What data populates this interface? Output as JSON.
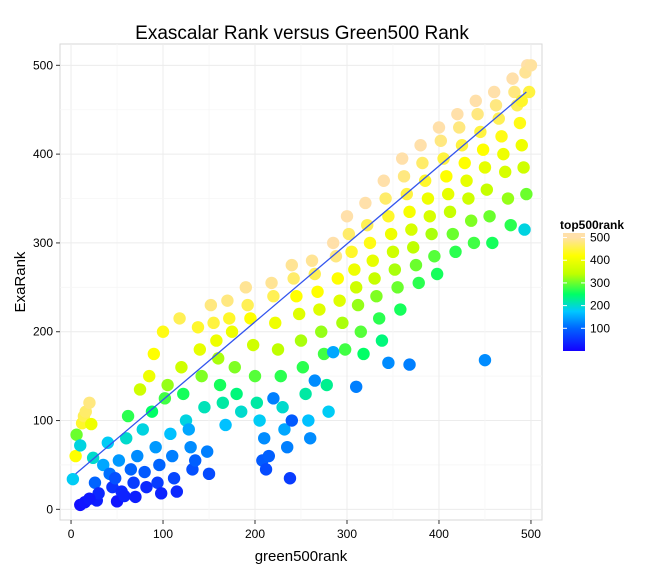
{
  "chart_data": {
    "type": "scatter",
    "title": "Exascalar Rank versus Green500 Rank",
    "xlabel": "green500rank",
    "ylabel": "ExaRank",
    "xlim": [
      -12,
      512
    ],
    "ylim": [
      -12,
      524
    ],
    "xticks": [
      0,
      100,
      200,
      300,
      400,
      500
    ],
    "yticks": [
      0,
      100,
      200,
      300,
      400,
      500
    ],
    "grid": true,
    "background": "#ffffff",
    "point_size_note": "large filled circles",
    "trend_line": {
      "x": [
        5,
        495
      ],
      "y": [
        40,
        470
      ],
      "color": "#3355ee"
    },
    "color_variable": "top500rank",
    "legend": {
      "title": "top500rank",
      "position": "right",
      "ticks": [
        100,
        200,
        300,
        400,
        500
      ],
      "gradient": [
        {
          "value": 0,
          "color": "#1400ff"
        },
        {
          "value": 100,
          "color": "#0064ff"
        },
        {
          "value": 175,
          "color": "#00c8ff"
        },
        {
          "value": 250,
          "color": "#00ff66"
        },
        {
          "value": 340,
          "color": "#bfff00"
        },
        {
          "value": 420,
          "color": "#ffff00"
        },
        {
          "value": 500,
          "color": "#ffe0aa"
        }
      ]
    },
    "points": [
      [
        2,
        34,
        180
      ],
      [
        5,
        60,
        420
      ],
      [
        6,
        84,
        300
      ],
      [
        10,
        72,
        190
      ],
      [
        12,
        97,
        440
      ],
      [
        14,
        105,
        460
      ],
      [
        16,
        110,
        470
      ],
      [
        20,
        120,
        480
      ],
      [
        22,
        96,
        400
      ],
      [
        24,
        58,
        200
      ],
      [
        26,
        30,
        100
      ],
      [
        28,
        10,
        30
      ],
      [
        30,
        18,
        40
      ],
      [
        10,
        5,
        15
      ],
      [
        15,
        8,
        20
      ],
      [
        20,
        12,
        25
      ],
      [
        35,
        50,
        150
      ],
      [
        40,
        75,
        180
      ],
      [
        42,
        40,
        110
      ],
      [
        45,
        25,
        50
      ],
      [
        48,
        35,
        80
      ],
      [
        50,
        9,
        20
      ],
      [
        52,
        55,
        140
      ],
      [
        55,
        20,
        40
      ],
      [
        58,
        15,
        35
      ],
      [
        60,
        80,
        200
      ],
      [
        62,
        105,
        270
      ],
      [
        65,
        45,
        100
      ],
      [
        68,
        30,
        60
      ],
      [
        70,
        14,
        30
      ],
      [
        72,
        60,
        130
      ],
      [
        75,
        135,
        360
      ],
      [
        78,
        90,
        190
      ],
      [
        80,
        42,
        90
      ],
      [
        82,
        25,
        40
      ],
      [
        85,
        150,
        400
      ],
      [
        88,
        110,
        250
      ],
      [
        90,
        175,
        420
      ],
      [
        92,
        70,
        140
      ],
      [
        94,
        30,
        60
      ],
      [
        96,
        50,
        100
      ],
      [
        98,
        18,
        35
      ],
      [
        100,
        200,
        430
      ],
      [
        102,
        125,
        280
      ],
      [
        105,
        140,
        320
      ],
      [
        108,
        85,
        170
      ],
      [
        110,
        60,
        120
      ],
      [
        112,
        35,
        70
      ],
      [
        115,
        20,
        40
      ],
      [
        118,
        215,
        460
      ],
      [
        120,
        160,
        360
      ],
      [
        122,
        130,
        260
      ],
      [
        125,
        100,
        190
      ],
      [
        128,
        90,
        150
      ],
      [
        130,
        70,
        130
      ],
      [
        132,
        45,
        80
      ],
      [
        135,
        55,
        95
      ],
      [
        138,
        205,
        440
      ],
      [
        140,
        180,
        390
      ],
      [
        142,
        150,
        310
      ],
      [
        145,
        115,
        210
      ],
      [
        148,
        65,
        120
      ],
      [
        150,
        40,
        75
      ],
      [
        152,
        230,
        480
      ],
      [
        155,
        210,
        450
      ],
      [
        158,
        190,
        400
      ],
      [
        160,
        170,
        330
      ],
      [
        162,
        140,
        260
      ],
      [
        165,
        120,
        220
      ],
      [
        168,
        95,
        170
      ],
      [
        170,
        235,
        480
      ],
      [
        172,
        215,
        440
      ],
      [
        175,
        200,
        400
      ],
      [
        178,
        160,
        310
      ],
      [
        180,
        130,
        240
      ],
      [
        185,
        110,
        200
      ],
      [
        190,
        250,
        490
      ],
      [
        192,
        230,
        460
      ],
      [
        195,
        215,
        420
      ],
      [
        198,
        185,
        360
      ],
      [
        200,
        150,
        290
      ],
      [
        202,
        120,
        220
      ],
      [
        205,
        100,
        180
      ],
      [
        208,
        55,
        90
      ],
      [
        210,
        80,
        130
      ],
      [
        212,
        45,
        75
      ],
      [
        215,
        60,
        95
      ],
      [
        218,
        255,
        490
      ],
      [
        220,
        240,
        460
      ],
      [
        222,
        210,
        400
      ],
      [
        225,
        180,
        340
      ],
      [
        228,
        150,
        270
      ],
      [
        230,
        115,
        200
      ],
      [
        232,
        90,
        150
      ],
      [
        235,
        70,
        120
      ],
      [
        238,
        35,
        60
      ],
      [
        240,
        275,
        490
      ],
      [
        242,
        260,
        470
      ],
      [
        245,
        240,
        420
      ],
      [
        248,
        220,
        380
      ],
      [
        250,
        190,
        330
      ],
      [
        252,
        160,
        270
      ],
      [
        255,
        130,
        220
      ],
      [
        258,
        100,
        170
      ],
      [
        260,
        80,
        130
      ],
      [
        262,
        280,
        490
      ],
      [
        265,
        265,
        460
      ],
      [
        268,
        245,
        420
      ],
      [
        270,
        225,
        380
      ],
      [
        272,
        200,
        320
      ],
      [
        275,
        175,
        280
      ],
      [
        278,
        140,
        230
      ],
      [
        280,
        110,
        180
      ],
      [
        285,
        300,
        500
      ],
      [
        288,
        285,
        480
      ],
      [
        290,
        260,
        420
      ],
      [
        292,
        235,
        380
      ],
      [
        295,
        210,
        330
      ],
      [
        298,
        180,
        280
      ],
      [
        300,
        330,
        500
      ],
      [
        302,
        310,
        470
      ],
      [
        305,
        290,
        440
      ],
      [
        308,
        270,
        400
      ],
      [
        310,
        250,
        360
      ],
      [
        312,
        230,
        320
      ],
      [
        315,
        200,
        290
      ],
      [
        318,
        175,
        250
      ],
      [
        320,
        345,
        500
      ],
      [
        322,
        320,
        460
      ],
      [
        325,
        300,
        430
      ],
      [
        328,
        280,
        390
      ],
      [
        330,
        260,
        350
      ],
      [
        332,
        240,
        310
      ],
      [
        335,
        215,
        270
      ],
      [
        338,
        190,
        240
      ],
      [
        340,
        370,
        500
      ],
      [
        342,
        350,
        470
      ],
      [
        345,
        330,
        440
      ],
      [
        348,
        310,
        400
      ],
      [
        350,
        290,
        360
      ],
      [
        352,
        270,
        330
      ],
      [
        355,
        250,
        300
      ],
      [
        358,
        225,
        260
      ],
      [
        360,
        395,
        500
      ],
      [
        362,
        375,
        480
      ],
      [
        365,
        355,
        450
      ],
      [
        368,
        335,
        410
      ],
      [
        370,
        315,
        370
      ],
      [
        372,
        295,
        340
      ],
      [
        375,
        275,
        300
      ],
      [
        378,
        255,
        270
      ],
      [
        380,
        410,
        500
      ],
      [
        382,
        390,
        470
      ],
      [
        385,
        370,
        440
      ],
      [
        388,
        350,
        400
      ],
      [
        390,
        330,
        370
      ],
      [
        392,
        310,
        330
      ],
      [
        395,
        285,
        290
      ],
      [
        398,
        265,
        260
      ],
      [
        400,
        430,
        500
      ],
      [
        402,
        415,
        480
      ],
      [
        405,
        395,
        450
      ],
      [
        408,
        375,
        420
      ],
      [
        410,
        355,
        390
      ],
      [
        412,
        335,
        350
      ],
      [
        415,
        310,
        300
      ],
      [
        418,
        290,
        270
      ],
      [
        420,
        445,
        500
      ],
      [
        422,
        430,
        480
      ],
      [
        425,
        410,
        450
      ],
      [
        428,
        390,
        420
      ],
      [
        430,
        370,
        390
      ],
      [
        432,
        350,
        360
      ],
      [
        435,
        325,
        310
      ],
      [
        438,
        300,
        280
      ],
      [
        440,
        460,
        500
      ],
      [
        442,
        445,
        480
      ],
      [
        445,
        425,
        450
      ],
      [
        448,
        405,
        420
      ],
      [
        450,
        385,
        390
      ],
      [
        452,
        360,
        350
      ],
      [
        455,
        330,
        300
      ],
      [
        458,
        300,
        260
      ],
      [
        460,
        470,
        500
      ],
      [
        462,
        455,
        480
      ],
      [
        465,
        440,
        460
      ],
      [
        468,
        420,
        430
      ],
      [
        470,
        400,
        400
      ],
      [
        472,
        380,
        370
      ],
      [
        475,
        350,
        320
      ],
      [
        478,
        320,
        270
      ],
      [
        480,
        485,
        500
      ],
      [
        482,
        470,
        480
      ],
      [
        485,
        455,
        460
      ],
      [
        488,
        435,
        430
      ],
      [
        490,
        410,
        400
      ],
      [
        492,
        385,
        360
      ],
      [
        495,
        355,
        300
      ],
      [
        496,
        500,
        500
      ],
      [
        494,
        492,
        490
      ],
      [
        498,
        470,
        450
      ],
      [
        490,
        460,
        440
      ],
      [
        493,
        315,
        190
      ],
      [
        500,
        500,
        495
      ],
      [
        345,
        165,
        130
      ],
      [
        368,
        163,
        120
      ],
      [
        450,
        168,
        130
      ],
      [
        285,
        177,
        150
      ],
      [
        310,
        138,
        120
      ],
      [
        265,
        145,
        130
      ],
      [
        240,
        100,
        90
      ],
      [
        220,
        125,
        120
      ]
    ]
  }
}
